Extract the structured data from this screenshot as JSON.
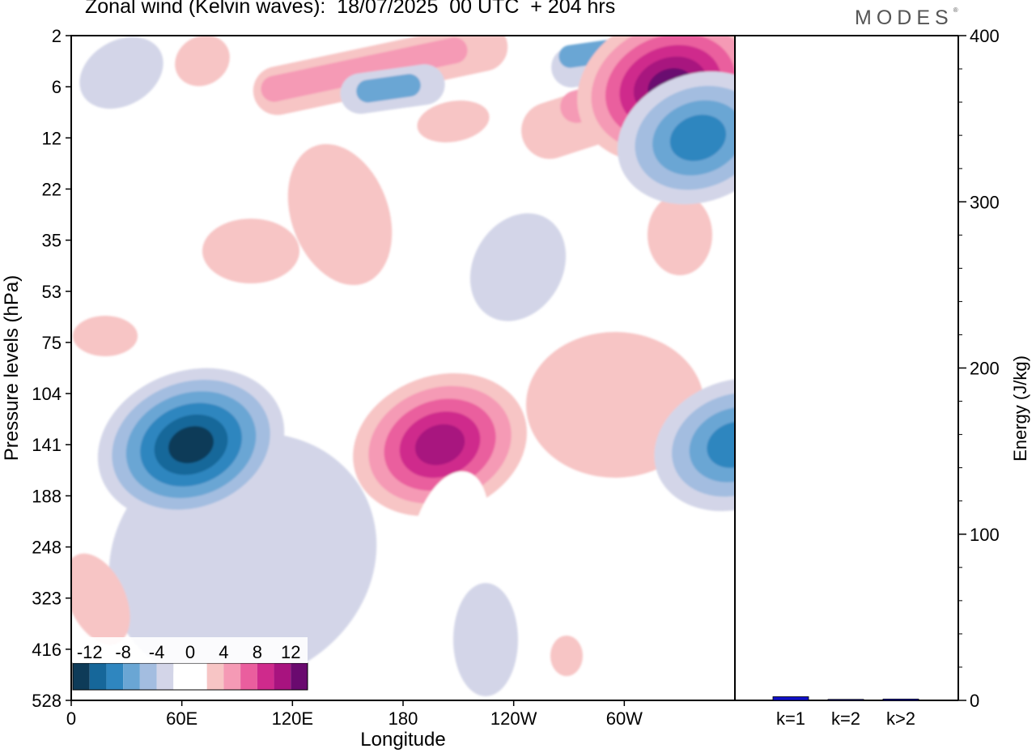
{
  "title": "Zonal wind (Kelvin waves):  18/07/2025  00 UTC  + 204 hrs",
  "brand": "MODES",
  "brand_mark": "®",
  "chart_data": [
    {
      "type": "heatmap",
      "title": "Zonal wind (Kelvin waves):  18/07/2025  00 UTC  + 204 hrs",
      "xlabel": "Longitude",
      "ylabel": "Pressure levels (hPa)",
      "x_ticks": [
        "0",
        "60E",
        "120E",
        "180",
        "120W",
        "60W"
      ],
      "x_tick_values": [
        0,
        60,
        120,
        180,
        240,
        300
      ],
      "xlim": [
        0,
        360
      ],
      "y_ticks": [
        "2",
        "6",
        "12",
        "22",
        "35",
        "53",
        "75",
        "104",
        "141",
        "188",
        "248",
        "323",
        "416",
        "528"
      ],
      "y_scale": "categorical pressure levels, top to bottom",
      "colorbar_labels": [
        "-12",
        "-8",
        "-4",
        "0",
        "4",
        "8",
        "12"
      ],
      "colorbar_colors": [
        "#0e3b58",
        "#16679a",
        "#2f86bf",
        "#6aa6d4",
        "#a3bde0",
        "#d3d5e8",
        "#ffffff",
        "#ffffff",
        "#f7c5c5",
        "#f59ab5",
        "#ea5e9e",
        "#cf2a8c",
        "#a8137f",
        "#6a0a6f"
      ],
      "features": [
        {
          "sign": "negative",
          "peak": -14,
          "lon": 65,
          "level": "141",
          "note": "easterly core, lower troposphere near 60E"
        },
        {
          "sign": "positive",
          "peak": 10,
          "lon": 200,
          "level": "141",
          "note": "westerly anomaly near the dateline"
        },
        {
          "sign": "positive",
          "peak": 11,
          "lon": 325,
          "level": "6",
          "note": "upper stratospheric westerly band"
        },
        {
          "sign": "negative",
          "peak": -8,
          "lon": 340,
          "level": "12",
          "note": "upper stratospheric easterly band"
        },
        {
          "sign": "negative",
          "peak": -8,
          "lon": 360,
          "level": "141",
          "note": "easterly anomaly near the east edge"
        }
      ]
    },
    {
      "type": "bar",
      "categories": [
        "k=1",
        "k=2",
        "k>2"
      ],
      "values": [
        2.2,
        0.6,
        0.8
      ],
      "ylabel": "Energy (J/kg)",
      "ylim": [
        0,
        400
      ],
      "y_ticks": [
        "0",
        "100",
        "200",
        "300",
        "400"
      ],
      "bar_color": "#1010c8"
    }
  ]
}
